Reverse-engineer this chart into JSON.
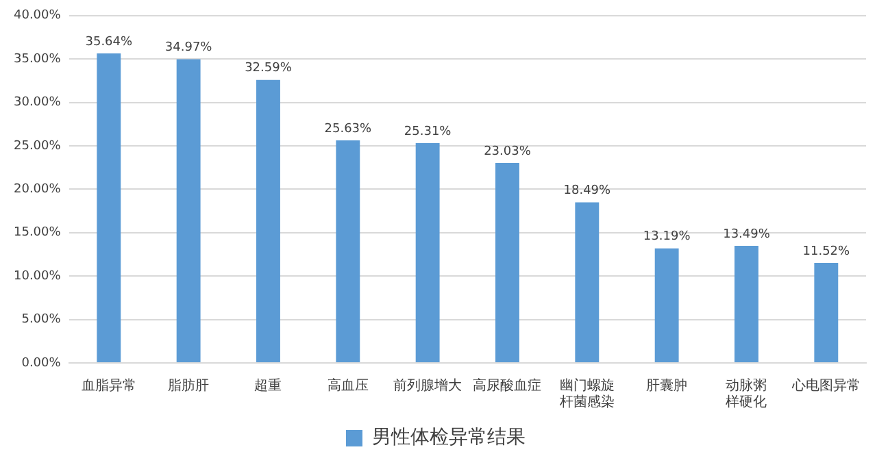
{
  "chart_data": {
    "type": "bar",
    "categories": [
      "血脂异常",
      "脂肪肝",
      "超重",
      "高血压",
      "前列腺增大",
      "高尿酸血症",
      "幽门螺旋杆菌感染",
      "肝囊肿",
      "动脉粥样硬化",
      "心电图异常"
    ],
    "series": [
      {
        "name": "男性体检异常结果",
        "color": "#5b9bd5",
        "values": [
          35.64,
          34.97,
          32.59,
          25.63,
          25.31,
          23.03,
          18.49,
          13.19,
          13.49,
          11.52
        ],
        "value_labels": [
          "35.64%",
          "34.97%",
          "32.59%",
          "25.63%",
          "25.31%",
          "23.03%",
          "18.49%",
          "13.19%",
          "13.49%",
          "11.52%"
        ]
      }
    ],
    "ylim": [
      0,
      40
    ],
    "yticks": [
      {
        "value": 0,
        "label": "0.00%"
      },
      {
        "value": 5,
        "label": "5.00%"
      },
      {
        "value": 10,
        "label": "10.00%"
      },
      {
        "value": 15,
        "label": "15.00%"
      },
      {
        "value": 20,
        "label": "20.00%"
      },
      {
        "value": 25,
        "label": "25.00%"
      },
      {
        "value": 30,
        "label": "30.00%"
      },
      {
        "value": 35,
        "label": "35.00%"
      },
      {
        "value": 40,
        "label": "40.00%"
      }
    ],
    "grid": "y",
    "legend": "bottom"
  }
}
